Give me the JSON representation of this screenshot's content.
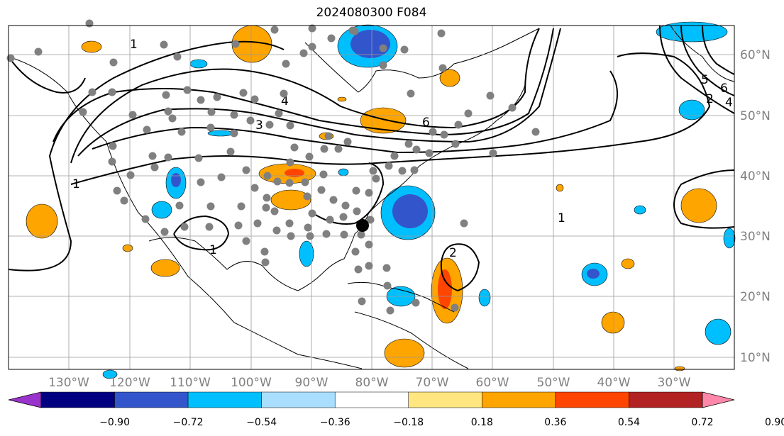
{
  "title": "2024080300 F084",
  "lon_labels": [
    "130°W",
    "120°W",
    "110°W",
    "100°W",
    "90°W",
    "80°W",
    "70°W",
    "60°W",
    "50°W",
    "40°W",
    "30°W"
  ],
  "lat_labels": [
    "60°N",
    "50°N",
    "40°N",
    "30°N",
    "20°N",
    "10°N"
  ],
  "contour_labels": [
    "1",
    "1",
    "1",
    "2",
    "3",
    "4",
    "6",
    "6",
    "5",
    "4",
    "2",
    "1"
  ],
  "colorbar": {
    "ticks": [
      "−0.90",
      "−0.72",
      "−0.54",
      "−0.36",
      "−0.18",
      "0.18",
      "0.36",
      "0.54",
      "0.72",
      "0.90"
    ],
    "colors": [
      "#9933cc",
      "#000080",
      "#3355cc",
      "#00bfff",
      "#aadeff",
      "#ffffff",
      "#ffe680",
      "#ffa500",
      "#ff4500",
      "#b22222",
      "#ff88aa"
    ]
  },
  "colors": {
    "neg_light": "#00bfff",
    "neg_mid": "#3355cc",
    "neg_dark": "#1a2e9e",
    "pos_light": "#ffa500",
    "pos_mid": "#ff4500",
    "station": "#808080",
    "marker": "#000000"
  }
}
